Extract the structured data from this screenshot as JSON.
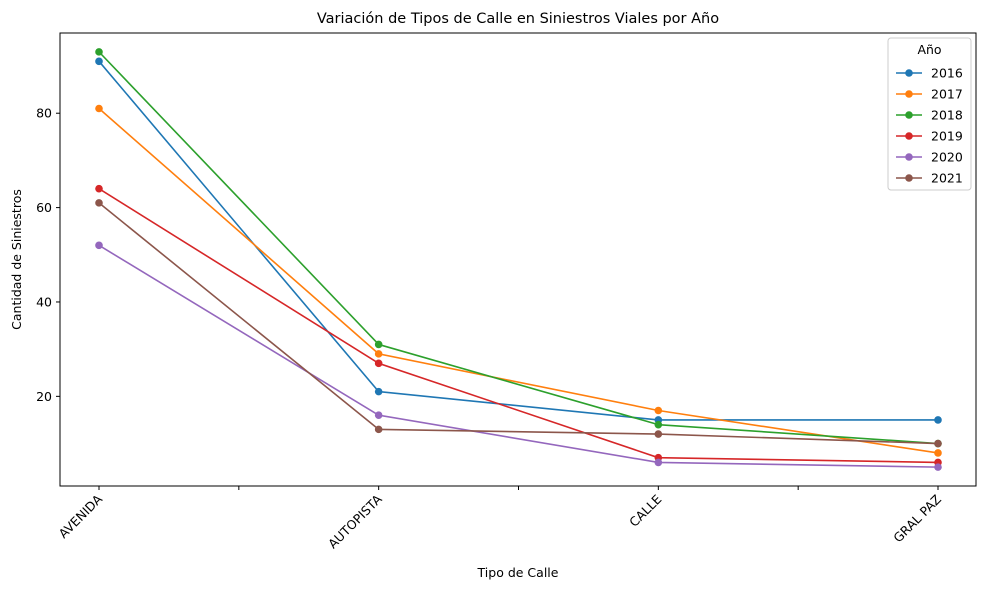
{
  "chart_data": {
    "type": "line",
    "title": "Variación de Tipos de Calle en Siniestros Viales por Año",
    "xlabel": "Tipo de Calle",
    "ylabel": "Cantidad de Siniestros",
    "categories": [
      "AVENIDA",
      "AUTOPISTA",
      "CALLE",
      "GRAL PAZ"
    ],
    "yticks": [
      20,
      40,
      60,
      80
    ],
    "ylim": [
      1,
      97
    ],
    "grid": false,
    "legend": {
      "title": "Año",
      "position": "top-right"
    },
    "series": [
      {
        "name": "2016",
        "color": "#1f77b4",
        "values": [
          91,
          21,
          15,
          15
        ]
      },
      {
        "name": "2017",
        "color": "#ff7f0e",
        "values": [
          81,
          29,
          17,
          8
        ]
      },
      {
        "name": "2018",
        "color": "#2ca02c",
        "values": [
          93,
          31,
          14,
          10
        ]
      },
      {
        "name": "2019",
        "color": "#d62728",
        "values": [
          64,
          27,
          7,
          6
        ]
      },
      {
        "name": "2020",
        "color": "#9467bd",
        "values": [
          52,
          16,
          6,
          5
        ]
      },
      {
        "name": "2021",
        "color": "#8c564b",
        "values": [
          61,
          13,
          12,
          10
        ]
      }
    ]
  }
}
